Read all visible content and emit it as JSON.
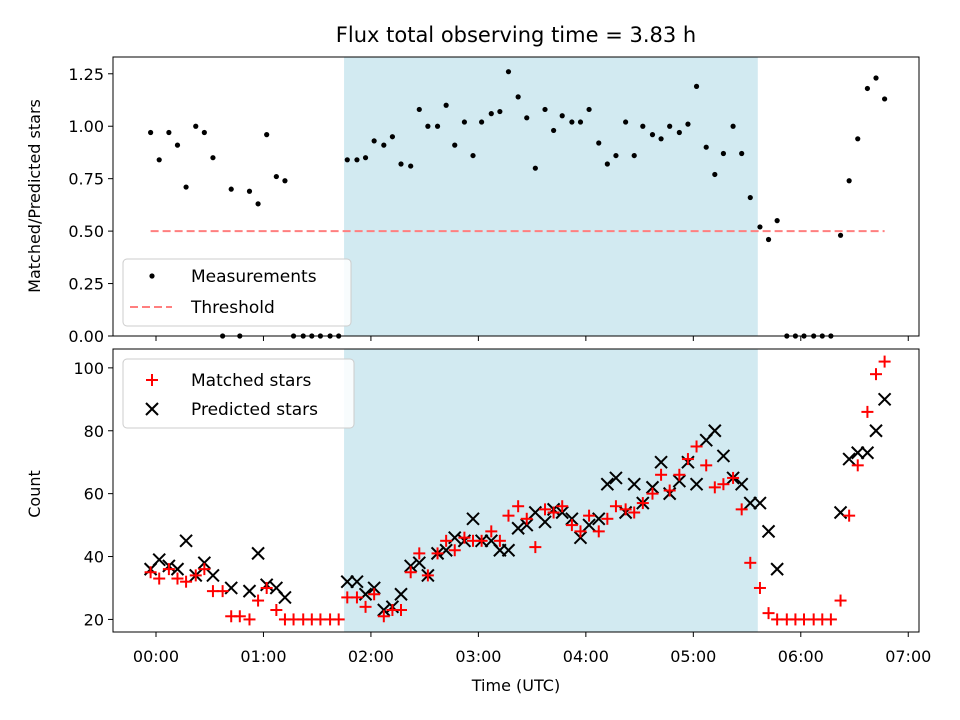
{
  "chart_data": [
    {
      "type": "scatter",
      "title": "Flux total observing time = 3.83 h",
      "ylabel": "Matched/Predicted stars",
      "xlabel": "",
      "xlim": [
        -0.4,
        7.1
      ],
      "ylim": [
        0.0,
        1.33
      ],
      "yticks": [
        0.0,
        0.25,
        0.5,
        0.75,
        1.0,
        1.25
      ],
      "ytick_labels": [
        "0.00",
        "0.25",
        "0.50",
        "0.75",
        "1.00",
        "1.25"
      ],
      "grid": false,
      "legend_position": "lower-left",
      "shaded_span": {
        "x0": 1.75,
        "x1": 5.6,
        "color": "#add8e6"
      },
      "series": [
        {
          "name": "Measurements",
          "marker": "dot",
          "color": "#000000",
          "points": [
            [
              -0.05,
              0.97
            ],
            [
              0.03,
              0.84
            ],
            [
              0.12,
              0.97
            ],
            [
              0.2,
              0.91
            ],
            [
              0.28,
              0.71
            ],
            [
              0.37,
              1.0
            ],
            [
              0.45,
              0.97
            ],
            [
              0.53,
              0.85
            ],
            [
              0.62,
              0.0
            ],
            [
              0.7,
              0.7
            ],
            [
              0.78,
              0.0
            ],
            [
              0.87,
              0.69
            ],
            [
              0.95,
              0.63
            ],
            [
              1.03,
              0.96
            ],
            [
              1.12,
              0.76
            ],
            [
              1.2,
              0.74
            ],
            [
              1.28,
              0.0
            ],
            [
              1.37,
              0.0
            ],
            [
              1.45,
              0.0
            ],
            [
              1.53,
              0.0
            ],
            [
              1.62,
              0.0
            ],
            [
              1.7,
              0.0
            ],
            [
              1.78,
              0.84
            ],
            [
              1.87,
              0.84
            ],
            [
              1.95,
              0.85
            ],
            [
              2.03,
              0.93
            ],
            [
              2.12,
              0.91
            ],
            [
              2.2,
              0.95
            ],
            [
              2.28,
              0.82
            ],
            [
              2.37,
              0.81
            ],
            [
              2.45,
              1.08
            ],
            [
              2.53,
              1.0
            ],
            [
              2.62,
              1.0
            ],
            [
              2.7,
              1.1
            ],
            [
              2.78,
              0.91
            ],
            [
              2.87,
              1.02
            ],
            [
              2.95,
              0.86
            ],
            [
              3.03,
              1.02
            ],
            [
              3.12,
              1.06
            ],
            [
              3.2,
              1.07
            ],
            [
              3.28,
              1.26
            ],
            [
              3.37,
              1.14
            ],
            [
              3.45,
              1.04
            ],
            [
              3.53,
              0.8
            ],
            [
              3.62,
              1.08
            ],
            [
              3.7,
              0.98
            ],
            [
              3.78,
              1.05
            ],
            [
              3.87,
              1.02
            ],
            [
              3.95,
              1.02
            ],
            [
              4.03,
              1.08
            ],
            [
              4.12,
              0.92
            ],
            [
              4.2,
              0.82
            ],
            [
              4.28,
              0.86
            ],
            [
              4.37,
              1.02
            ],
            [
              4.45,
              0.86
            ],
            [
              4.53,
              1.0
            ],
            [
              4.62,
              0.96
            ],
            [
              4.7,
              0.94
            ],
            [
              4.78,
              1.0
            ],
            [
              4.87,
              0.97
            ],
            [
              4.95,
              1.01
            ],
            [
              5.03,
              1.19
            ],
            [
              5.12,
              0.9
            ],
            [
              5.2,
              0.77
            ],
            [
              5.28,
              0.87
            ],
            [
              5.37,
              1.0
            ],
            [
              5.45,
              0.87
            ],
            [
              5.53,
              0.66
            ],
            [
              5.62,
              0.52
            ],
            [
              5.7,
              0.46
            ],
            [
              5.78,
              0.55
            ],
            [
              5.87,
              0.0
            ],
            [
              5.95,
              0.0
            ],
            [
              6.03,
              0.0
            ],
            [
              6.12,
              0.0
            ],
            [
              6.2,
              0.0
            ],
            [
              6.28,
              0.0
            ],
            [
              6.37,
              0.48
            ],
            [
              6.45,
              0.74
            ],
            [
              6.53,
              0.94
            ],
            [
              6.62,
              1.18
            ],
            [
              6.7,
              1.23
            ],
            [
              6.78,
              1.13
            ]
          ]
        },
        {
          "name": "Threshold",
          "type": "line",
          "style": "dashed",
          "color": "#ff7f7f",
          "points": [
            [
              -0.05,
              0.5
            ],
            [
              6.78,
              0.5
            ]
          ]
        }
      ]
    },
    {
      "type": "scatter",
      "title": "",
      "xlabel": "Time (UTC)",
      "ylabel": "Count",
      "xlim": [
        -0.4,
        7.1
      ],
      "ylim": [
        16,
        106
      ],
      "xticks": [
        0,
        1,
        2,
        3,
        4,
        5,
        6,
        7
      ],
      "xtick_labels": [
        "00:00",
        "01:00",
        "02:00",
        "03:00",
        "04:00",
        "05:00",
        "06:00",
        "07:00"
      ],
      "yticks": [
        20,
        40,
        60,
        80,
        100
      ],
      "ytick_labels": [
        "20",
        "40",
        "60",
        "80",
        "100"
      ],
      "grid": false,
      "legend_position": "upper-left",
      "shaded_span": {
        "x0": 1.75,
        "x1": 5.6,
        "color": "#add8e6"
      },
      "series": [
        {
          "name": "Matched stars",
          "marker": "plus",
          "color": "#ff0000",
          "points": [
            [
              -0.05,
              35
            ],
            [
              0.03,
              33
            ],
            [
              0.12,
              36
            ],
            [
              0.2,
              33
            ],
            [
              0.28,
              32
            ],
            [
              0.37,
              34
            ],
            [
              0.45,
              36
            ],
            [
              0.53,
              29
            ],
            [
              0.62,
              29
            ],
            [
              0.7,
              21
            ],
            [
              0.78,
              21
            ],
            [
              0.87,
              20
            ],
            [
              0.95,
              26
            ],
            [
              1.03,
              30
            ],
            [
              1.12,
              23
            ],
            [
              1.2,
              20
            ],
            [
              1.28,
              20
            ],
            [
              1.37,
              20
            ],
            [
              1.45,
              20
            ],
            [
              1.53,
              20
            ],
            [
              1.62,
              20
            ],
            [
              1.7,
              20
            ],
            [
              1.78,
              27
            ],
            [
              1.87,
              27
            ],
            [
              1.95,
              24
            ],
            [
              2.03,
              28
            ],
            [
              2.12,
              21
            ],
            [
              2.2,
              23
            ],
            [
              2.28,
              23
            ],
            [
              2.37,
              35
            ],
            [
              2.45,
              41
            ],
            [
              2.53,
              34
            ],
            [
              2.62,
              41
            ],
            [
              2.7,
              45
            ],
            [
              2.78,
              42
            ],
            [
              2.87,
              46
            ],
            [
              2.95,
              45
            ],
            [
              3.03,
              45
            ],
            [
              3.12,
              48
            ],
            [
              3.2,
              45
            ],
            [
              3.28,
              53
            ],
            [
              3.37,
              56
            ],
            [
              3.45,
              52
            ],
            [
              3.53,
              43
            ],
            [
              3.62,
              55
            ],
            [
              3.7,
              54
            ],
            [
              3.78,
              56
            ],
            [
              3.87,
              50
            ],
            [
              3.95,
              48
            ],
            [
              4.03,
              53
            ],
            [
              4.12,
              48
            ],
            [
              4.2,
              52
            ],
            [
              4.28,
              56
            ],
            [
              4.37,
              55
            ],
            [
              4.45,
              54
            ],
            [
              4.53,
              57
            ],
            [
              4.62,
              60
            ],
            [
              4.7,
              66
            ],
            [
              4.78,
              61
            ],
            [
              4.87,
              66
            ],
            [
              4.95,
              71
            ],
            [
              5.03,
              75
            ],
            [
              5.12,
              69
            ],
            [
              5.2,
              62
            ],
            [
              5.28,
              63
            ],
            [
              5.37,
              65
            ],
            [
              5.45,
              55
            ],
            [
              5.53,
              38
            ],
            [
              5.62,
              30
            ],
            [
              5.7,
              22
            ],
            [
              5.78,
              20
            ],
            [
              5.87,
              20
            ],
            [
              5.95,
              20
            ],
            [
              6.03,
              20
            ],
            [
              6.12,
              20
            ],
            [
              6.2,
              20
            ],
            [
              6.28,
              20
            ],
            [
              6.37,
              26
            ],
            [
              6.45,
              53
            ],
            [
              6.53,
              69
            ],
            [
              6.62,
              86
            ],
            [
              6.7,
              98
            ],
            [
              6.78,
              102
            ]
          ]
        },
        {
          "name": "Predicted stars",
          "marker": "x",
          "color": "#000000",
          "points": [
            [
              -0.05,
              36
            ],
            [
              0.03,
              39
            ],
            [
              0.12,
              37
            ],
            [
              0.2,
              36
            ],
            [
              0.28,
              45
            ],
            [
              0.37,
              34
            ],
            [
              0.45,
              38
            ],
            [
              0.53,
              34
            ],
            [
              0.7,
              30
            ],
            [
              0.87,
              29
            ],
            [
              0.95,
              41
            ],
            [
              1.03,
              31
            ],
            [
              1.12,
              30
            ],
            [
              1.2,
              27
            ],
            [
              1.78,
              32
            ],
            [
              1.87,
              32
            ],
            [
              1.95,
              28
            ],
            [
              2.03,
              30
            ],
            [
              2.12,
              23
            ],
            [
              2.2,
              24
            ],
            [
              2.28,
              28
            ],
            [
              2.37,
              37
            ],
            [
              2.45,
              38
            ],
            [
              2.53,
              34
            ],
            [
              2.62,
              41
            ],
            [
              2.7,
              42
            ],
            [
              2.78,
              46
            ],
            [
              2.87,
              45
            ],
            [
              2.95,
              52
            ],
            [
              3.03,
              45
            ],
            [
              3.12,
              45
            ],
            [
              3.2,
              42
            ],
            [
              3.28,
              42
            ],
            [
              3.37,
              49
            ],
            [
              3.45,
              50
            ],
            [
              3.53,
              54
            ],
            [
              3.62,
              51
            ],
            [
              3.7,
              55
            ],
            [
              3.78,
              54
            ],
            [
              3.87,
              52
            ],
            [
              3.95,
              46
            ],
            [
              4.03,
              50
            ],
            [
              4.12,
              52
            ],
            [
              4.2,
              63
            ],
            [
              4.28,
              65
            ],
            [
              4.37,
              54
            ],
            [
              4.45,
              63
            ],
            [
              4.53,
              57
            ],
            [
              4.62,
              62
            ],
            [
              4.7,
              70
            ],
            [
              4.78,
              60
            ],
            [
              4.87,
              64
            ],
            [
              4.95,
              70
            ],
            [
              5.03,
              63
            ],
            [
              5.12,
              77
            ],
            [
              5.2,
              80
            ],
            [
              5.28,
              72
            ],
            [
              5.37,
              65
            ],
            [
              5.45,
              63
            ],
            [
              5.53,
              57
            ],
            [
              5.62,
              57
            ],
            [
              5.7,
              48
            ],
            [
              5.78,
              36
            ],
            [
              6.37,
              54
            ],
            [
              6.45,
              71
            ],
            [
              6.53,
              73
            ],
            [
              6.62,
              73
            ],
            [
              6.7,
              80
            ],
            [
              6.78,
              90
            ]
          ]
        }
      ]
    }
  ]
}
